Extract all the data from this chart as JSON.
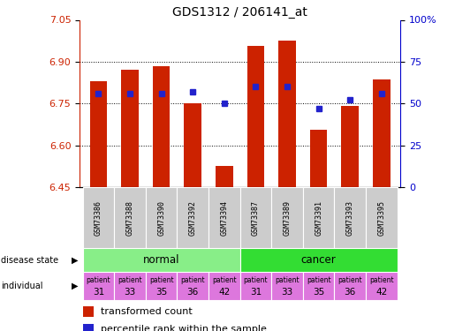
{
  "title": "GDS1312 / 206141_at",
  "samples": [
    "GSM73386",
    "GSM73388",
    "GSM73390",
    "GSM73392",
    "GSM73394",
    "GSM73387",
    "GSM73389",
    "GSM73391",
    "GSM73393",
    "GSM73395"
  ],
  "transformed_counts": [
    6.83,
    6.87,
    6.885,
    6.75,
    6.525,
    6.955,
    6.975,
    6.655,
    6.742,
    6.835
  ],
  "percentile_ranks": [
    56,
    56,
    56,
    57,
    50,
    60,
    60,
    47,
    52,
    56
  ],
  "ylim_left": [
    6.45,
    7.05
  ],
  "ylim_right": [
    0,
    100
  ],
  "yticks_left": [
    6.45,
    6.6,
    6.75,
    6.9,
    7.05
  ],
  "yticks_right": [
    0,
    25,
    50,
    75,
    100
  ],
  "disease_states": [
    "normal",
    "normal",
    "normal",
    "normal",
    "normal",
    "cancer",
    "cancer",
    "cancer",
    "cancer",
    "cancer"
  ],
  "individuals": [
    "31",
    "33",
    "35",
    "36",
    "42",
    "31",
    "33",
    "35",
    "36",
    "42"
  ],
  "bar_color": "#cc2200",
  "dot_color": "#2222cc",
  "normal_color": "#88ee88",
  "cancer_color": "#33dd33",
  "individual_color": "#dd77dd",
  "sample_bg_color": "#cccccc",
  "grid_color": "#000000",
  "title_fontsize": 10,
  "axis_label_color_left": "#cc2200",
  "axis_label_color_right": "#0000cc"
}
